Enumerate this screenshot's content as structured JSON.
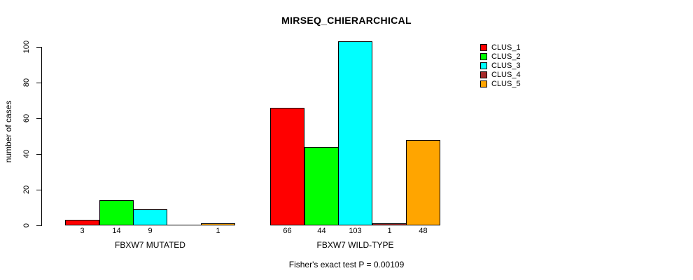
{
  "title": "MIRSEQ_CHIERARCHICAL",
  "footer": "Fisher's exact test P = 0.00109",
  "legend": {
    "entries": [
      {
        "label": "CLUS_1",
        "color": "#ff0000"
      },
      {
        "label": "CLUS_2",
        "color": "#00ff00"
      },
      {
        "label": "CLUS_3",
        "color": "#00ffff"
      },
      {
        "label": "CLUS_4",
        "color": "#a52a2a"
      },
      {
        "label": "CLUS_5",
        "color": "#ffa500"
      }
    ]
  },
  "chart_data": {
    "type": "bar",
    "title": "MIRSEQ_CHIERARCHICAL",
    "xlabel": "",
    "ylabel": "number of cases",
    "yticks": [
      0,
      20,
      40,
      60,
      80,
      100
    ],
    "ylim": [
      0,
      103
    ],
    "grid": false,
    "legend_position": "right-outside",
    "series": [
      "CLUS_1",
      "CLUS_2",
      "CLUS_3",
      "CLUS_4",
      "CLUS_5"
    ],
    "colors": [
      "#ff0000",
      "#00ff00",
      "#00ffff",
      "#a52a2a",
      "#ffa500"
    ],
    "groups": [
      {
        "label": "FBXW7 MUTATED",
        "values": [
          3,
          14,
          9,
          0,
          1
        ],
        "bar_labels": [
          "3",
          "14",
          "9",
          "",
          "1"
        ]
      },
      {
        "label": "FBXW7 WILD-TYPE",
        "values": [
          66,
          44,
          103,
          1,
          48
        ],
        "bar_labels": [
          "66",
          "44",
          "103",
          "1",
          "48"
        ]
      }
    ],
    "annotation": "Fisher's exact test P = 0.00109"
  }
}
